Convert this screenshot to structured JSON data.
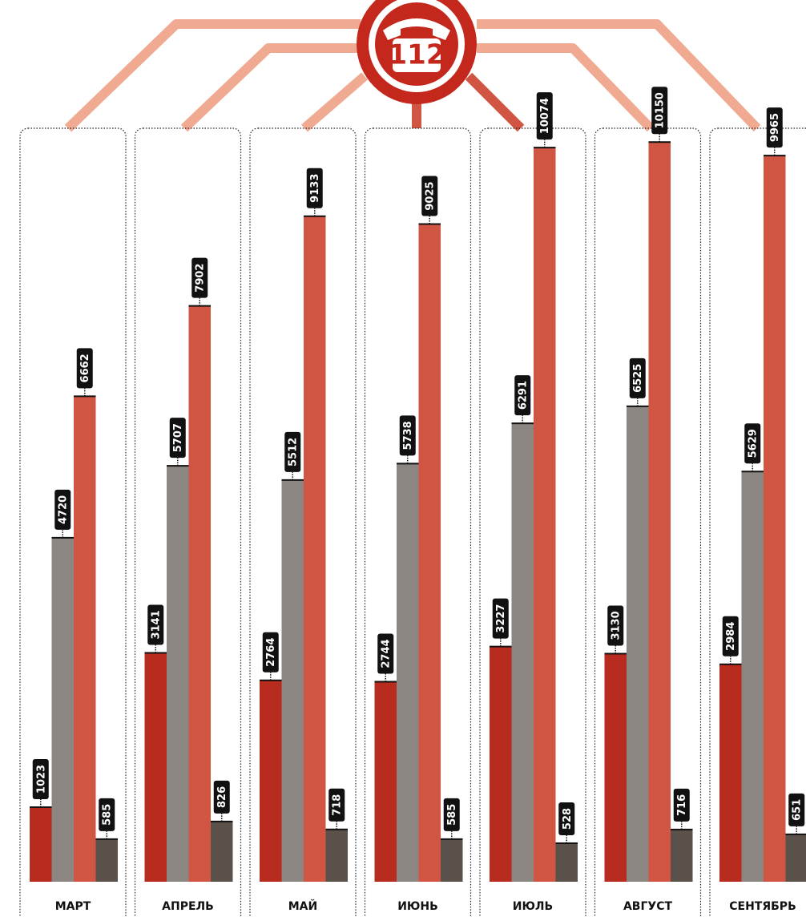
{
  "chart_data": {
    "type": "bar",
    "badge": "112",
    "categories": [
      "МАРТ",
      "АПРЕЛЬ",
      "МАЙ",
      "ИЮНЬ",
      "ИЮЛЬ",
      "АВГУСТ",
      "СЕНТЯБРЬ"
    ],
    "series": [
      {
        "color": "#b82b1f",
        "values": [
          1023,
          3141,
          2764,
          2744,
          3227,
          3130,
          2984
        ]
      },
      {
        "color": "#8b8681",
        "values": [
          4720,
          5707,
          5512,
          5738,
          6291,
          6525,
          5629
        ]
      },
      {
        "color": "#d05643",
        "values": [
          6662,
          7902,
          9133,
          9025,
          10074,
          10150,
          9965
        ]
      },
      {
        "color": "#5a514b",
        "values": [
          585,
          826,
          718,
          585,
          528,
          716,
          651
        ]
      }
    ],
    "ylim": [
      0,
      11000
    ]
  }
}
